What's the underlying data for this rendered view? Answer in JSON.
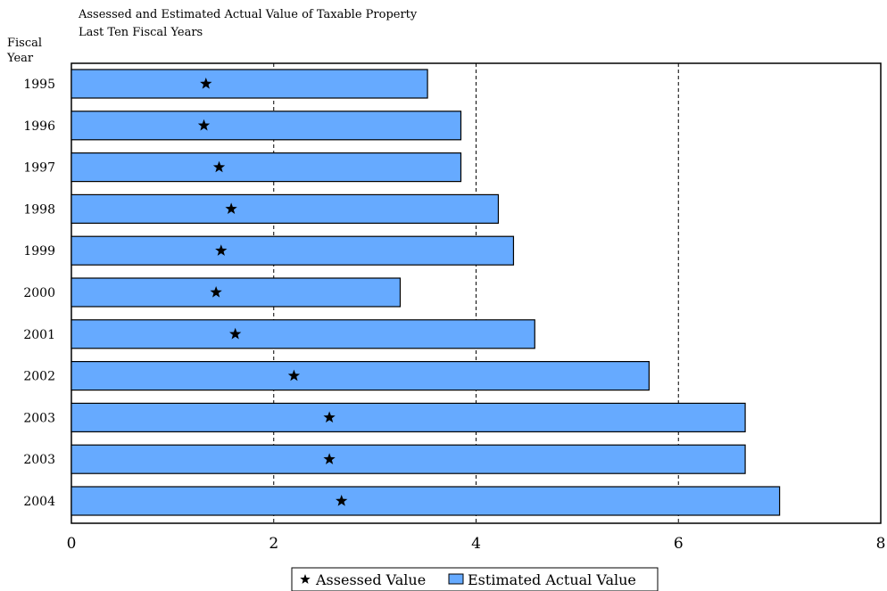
{
  "chart_data": {
    "type": "bar",
    "orientation": "horizontal",
    "title": "Assessed and Estimated Actual Value of Taxable Property",
    "subtitle": "Last Ten Fiscal Years",
    "ylabel": "Fiscal Year",
    "xlabel": "",
    "categories": [
      "1995",
      "1996",
      "1997",
      "1998",
      "1999",
      "2000",
      "2001",
      "2002",
      "2003",
      "2003",
      "2004"
    ],
    "series": [
      {
        "name": "Estimated Actual Value",
        "kind": "bar",
        "color": "#66aaff",
        "values": [
          3.52,
          3.85,
          3.85,
          4.22,
          4.37,
          3.25,
          4.58,
          5.71,
          6.66,
          6.66,
          7.0
        ]
      },
      {
        "name": "Assessed Value",
        "kind": "marker",
        "marker": "star",
        "values": [
          1.33,
          1.31,
          1.46,
          1.58,
          1.48,
          1.43,
          1.62,
          2.2,
          2.55,
          2.55,
          2.67
        ]
      }
    ],
    "xlim": [
      0,
      8
    ],
    "xticks": [
      "0",
      "2",
      "4",
      "6",
      "8"
    ],
    "grid": "dashed vertical",
    "legend_position": "bottom"
  }
}
